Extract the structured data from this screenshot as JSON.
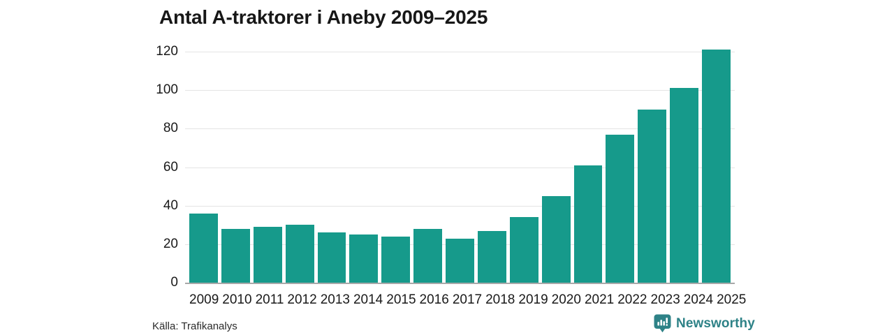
{
  "title": "Antal A-traktorer i Aneby 2009–2025",
  "source": "Källa: Trafikanalys",
  "brand": {
    "name": "Newsworthy",
    "color": "#2e8287"
  },
  "colors": {
    "bar": "#169a8b",
    "gridline": "#e4e4e4",
    "axis_line": "#a8a8a8",
    "text": "#1a1a1a"
  },
  "chart_data": {
    "type": "bar",
    "title": "Antal A-traktorer i Aneby 2009–2025",
    "categories": [
      "2009",
      "2010",
      "2011",
      "2012",
      "2013",
      "2014",
      "2015",
      "2016",
      "2017",
      "2018",
      "2019",
      "2020",
      "2021",
      "2022",
      "2023",
      "2024",
      "2025"
    ],
    "values": [
      36,
      28,
      29,
      30,
      26,
      25,
      24,
      28,
      23,
      27,
      34,
      45,
      61,
      77,
      90,
      101,
      121
    ],
    "xlabel": "",
    "ylabel": "",
    "ylim": [
      0,
      120
    ],
    "yticks": [
      0,
      20,
      40,
      60,
      80,
      100,
      120
    ],
    "grid": true,
    "legend": false,
    "bar_color": "#169a8b",
    "source": "Källa: Trafikanalys"
  }
}
